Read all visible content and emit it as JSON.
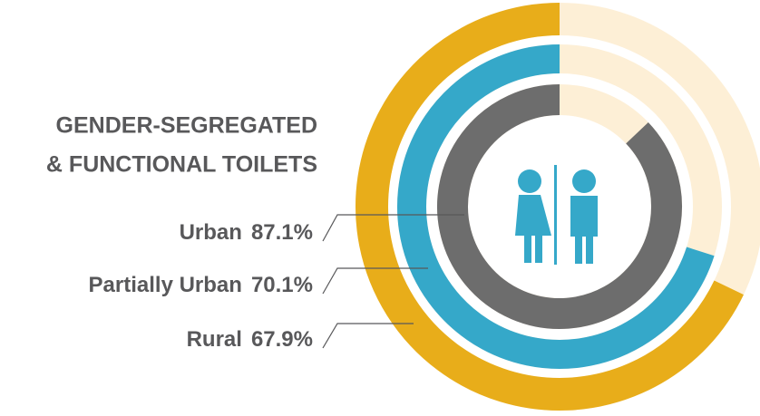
{
  "chart_data": {
    "type": "radial-bar",
    "title": [
      "GENDER-SEGREGATED",
      "& FUNCTIONAL TOILETS"
    ],
    "categories": [
      "Urban",
      "Partially Urban",
      "Rural"
    ],
    "values": [
      87.1,
      70.1,
      67.9
    ],
    "value_labels": [
      "87.1%",
      "70.1%",
      "67.9%"
    ],
    "colors": [
      "#6d6d6d",
      "#35a8c9",
      "#e8ad1a"
    ],
    "track_color": "#fdefd6",
    "max": 100
  }
}
